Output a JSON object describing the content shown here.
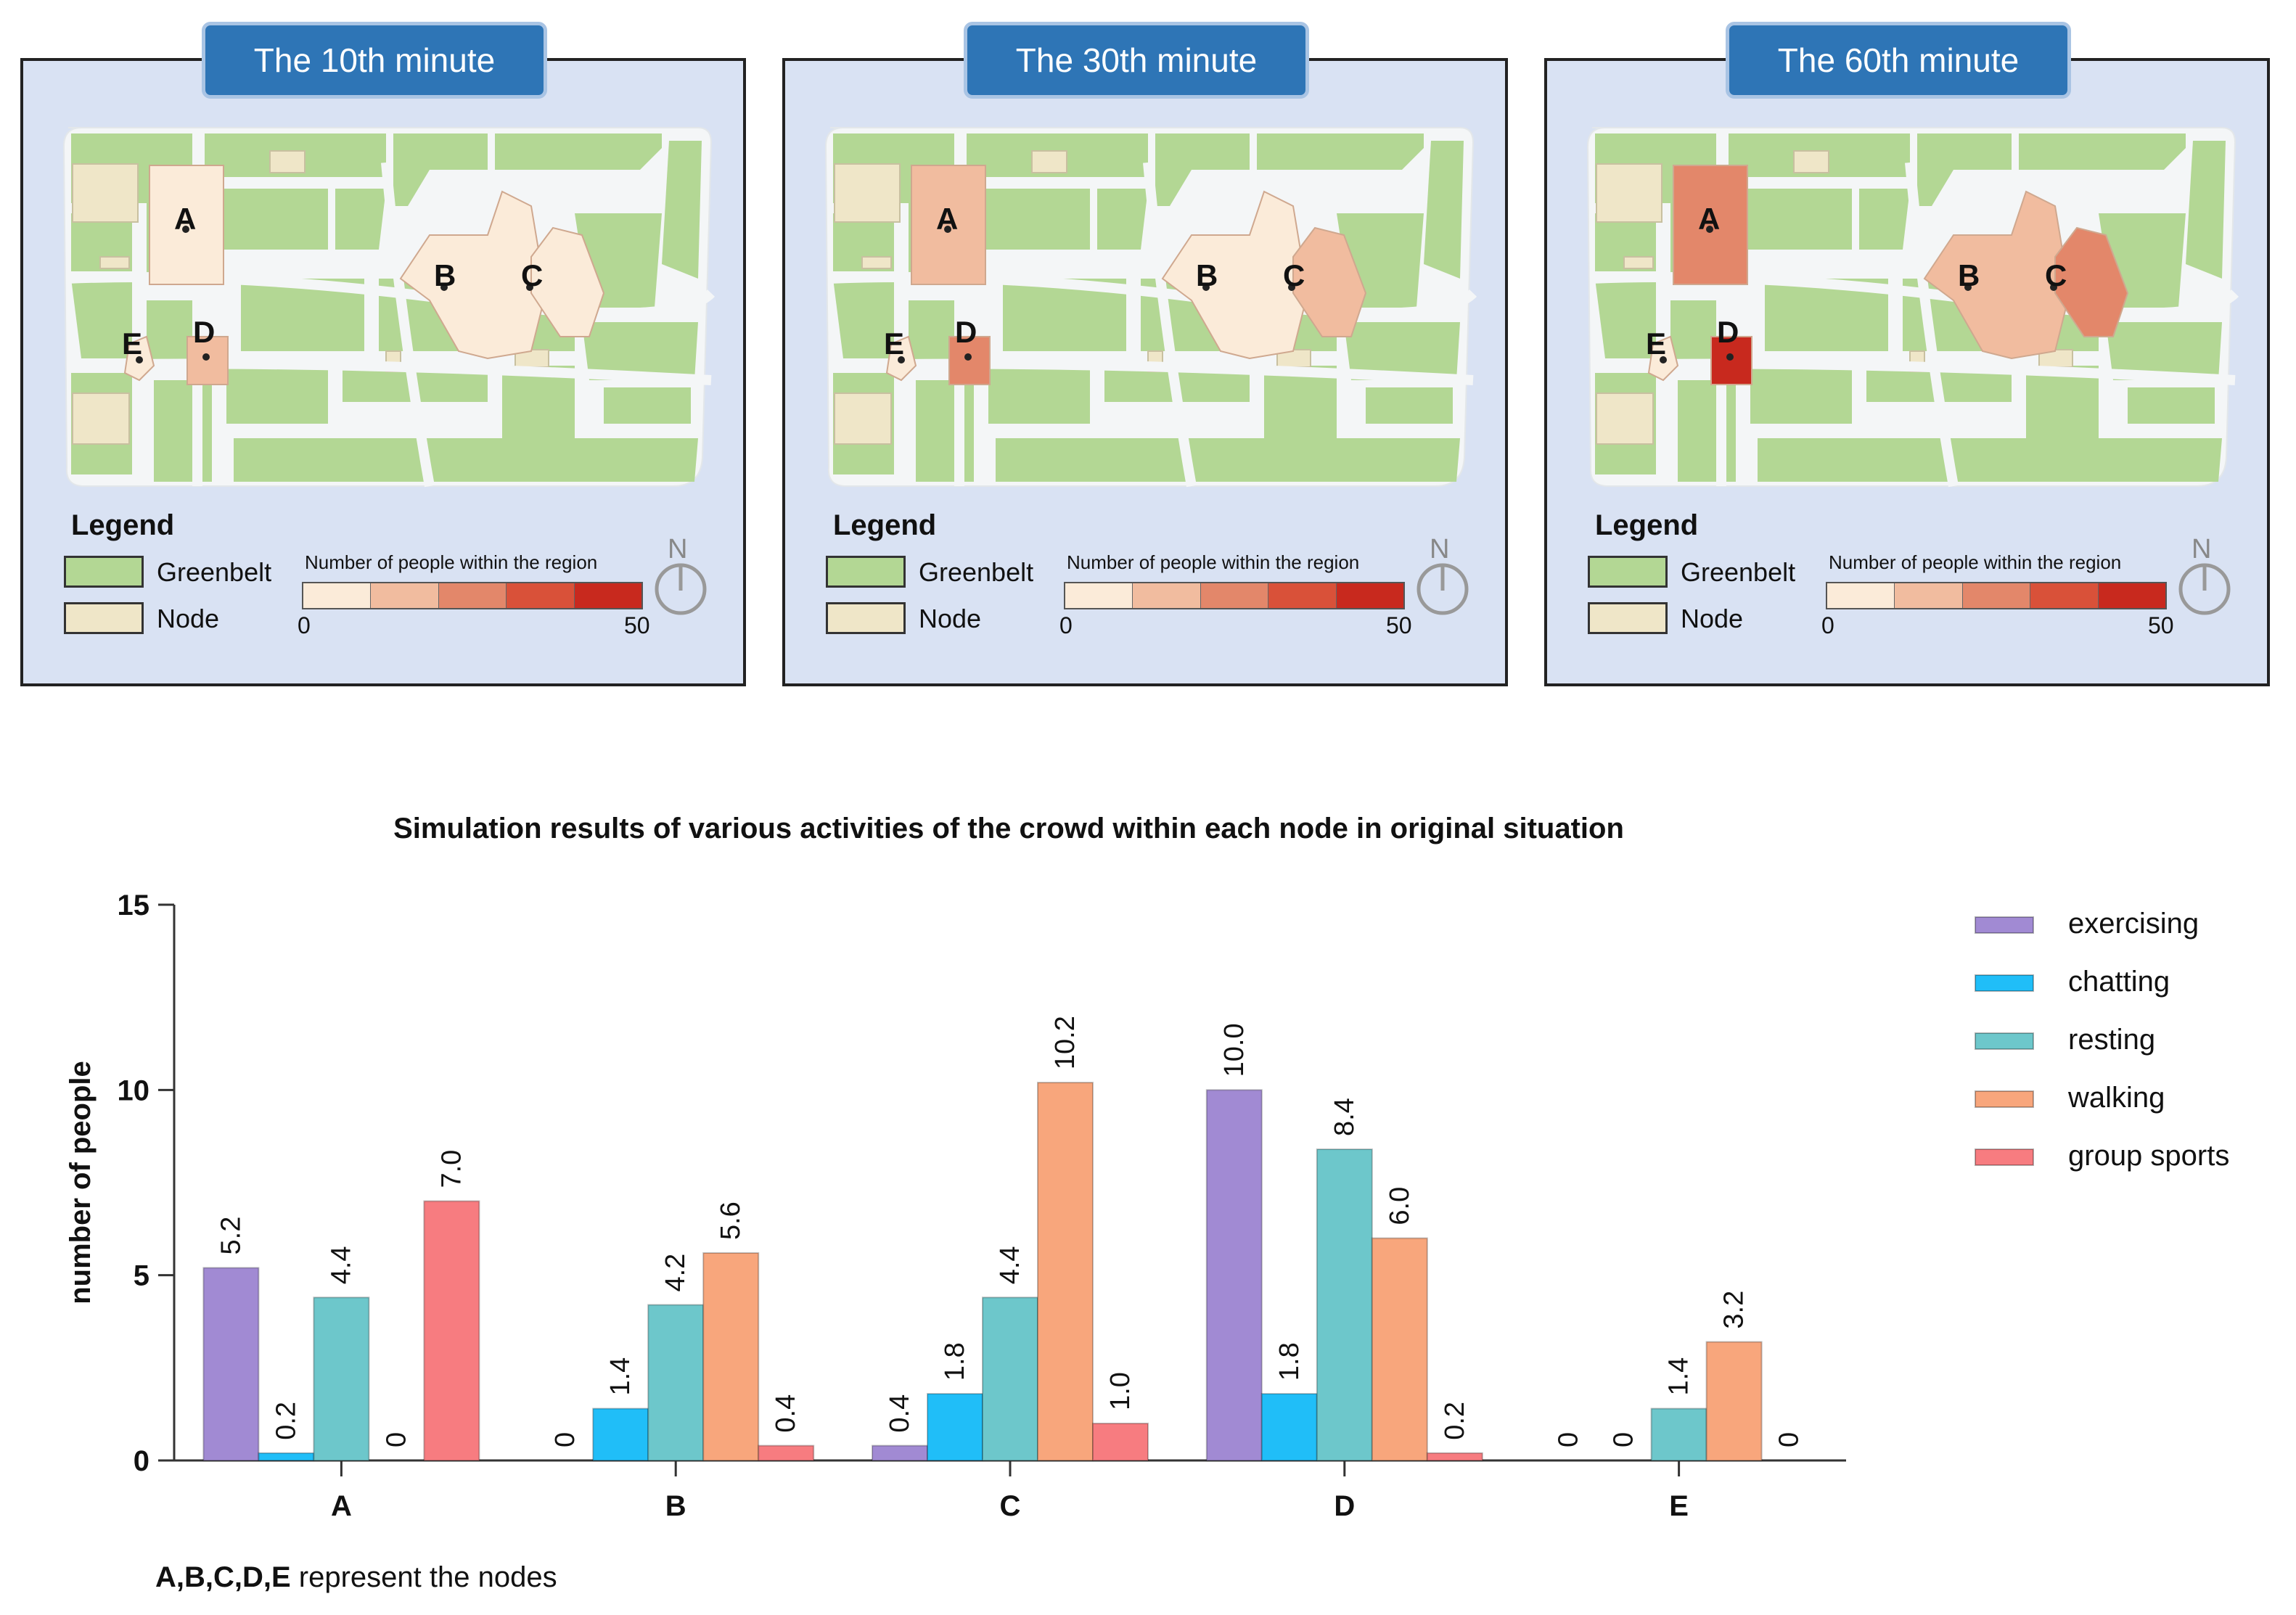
{
  "maps": [
    {
      "title": "The 10th minute",
      "node_levels": {
        "A": 1,
        "B": 1,
        "C": 1,
        "D": 2,
        "E": 1
      }
    },
    {
      "title": "The 30th minute",
      "node_levels": {
        "A": 2,
        "B": 1,
        "C": 2,
        "D": 3,
        "E": 1
      }
    },
    {
      "title": "The 60th minute",
      "node_levels": {
        "A": 3,
        "B": 2,
        "C": 3,
        "D": 5,
        "E": 1
      }
    }
  ],
  "map_legend": {
    "title": "Legend",
    "greenbelt": "Greenbelt",
    "node": "Node",
    "scale_label": "Number of people within the region",
    "scale_min": "0",
    "scale_max": "50",
    "compass": "N"
  },
  "colors": {
    "greenbelt": "#b3d794",
    "node": "#efe6c8",
    "scale": [
      "#fbebd9",
      "#f1bc9f",
      "#e3876a",
      "#d95139",
      "#c8291e"
    ]
  },
  "chart_data": {
    "type": "bar",
    "title": "Simulation results of various activities of the crowd within each node in original situation",
    "xlabel": "",
    "ylabel": "number of people",
    "ylim": [
      0,
      15
    ],
    "yticks": [
      0,
      5,
      10,
      15
    ],
    "categories": [
      "A",
      "B",
      "C",
      "D",
      "E"
    ],
    "legend_position": "right",
    "series": [
      {
        "name": "exercising",
        "color": "#a18ad3",
        "values": [
          5.2,
          0,
          0.4,
          10.0,
          0
        ],
        "labels": [
          "5.2",
          "0",
          "0.4",
          "10.0",
          "0"
        ]
      },
      {
        "name": "chatting",
        "color": "#20bef8",
        "values": [
          0.2,
          1.4,
          1.8,
          1.8,
          0
        ],
        "labels": [
          "0.2",
          "1.4",
          "1.8",
          "1.8",
          "0"
        ]
      },
      {
        "name": "resting",
        "color": "#6dc7cb",
        "values": [
          4.4,
          4.2,
          4.4,
          8.4,
          1.4
        ],
        "labels": [
          "4.4",
          "4.2",
          "4.4",
          "8.4",
          "1.4"
        ]
      },
      {
        "name": "walking",
        "color": "#f8a67c",
        "values": [
          0,
          5.6,
          10.2,
          6.0,
          3.2
        ],
        "labels": [
          "0",
          "5.6",
          "10.2",
          "6.0",
          "3.2"
        ]
      },
      {
        "name": "group sports",
        "color": "#f77c80",
        "values": [
          7.0,
          0.4,
          1.0,
          0.2,
          0
        ],
        "labels": [
          "7.0",
          "0.4",
          "1.0",
          "0.2",
          "0"
        ]
      }
    ]
  },
  "note": {
    "bold": "A,B,C,D,E",
    "rest": " represent the nodes"
  }
}
